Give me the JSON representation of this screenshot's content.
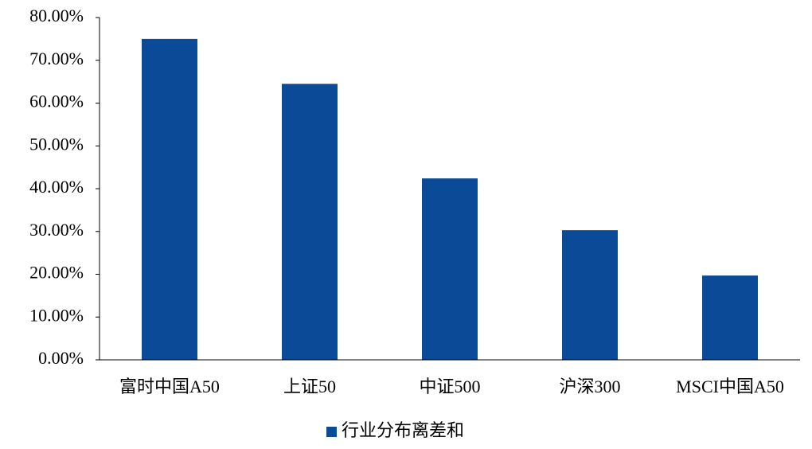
{
  "chart_data": {
    "type": "bar",
    "categories": [
      "富时中国A50",
      "上证50",
      "中证500",
      "沪深300",
      "MSCI中国A50"
    ],
    "series": [
      {
        "name": "行业分布离差和",
        "color": "#0a4a96",
        "values": [
          75,
          64.5,
          42.4,
          30.3,
          19.7
        ]
      }
    ],
    "ylim": [
      0,
      80
    ],
    "yticks": [
      {
        "value": 0,
        "label": "0.00%"
      },
      {
        "value": 10,
        "label": "10.00%"
      },
      {
        "value": 20,
        "label": "20.00%"
      },
      {
        "value": 30,
        "label": "30.00%"
      },
      {
        "value": 40,
        "label": "40.00%"
      },
      {
        "value": 50,
        "label": "50.00%"
      },
      {
        "value": 60,
        "label": "60.00%"
      },
      {
        "value": 70,
        "label": "70.00%"
      },
      {
        "value": 80,
        "label": "80.00%"
      }
    ],
    "legend": "bottom"
  }
}
